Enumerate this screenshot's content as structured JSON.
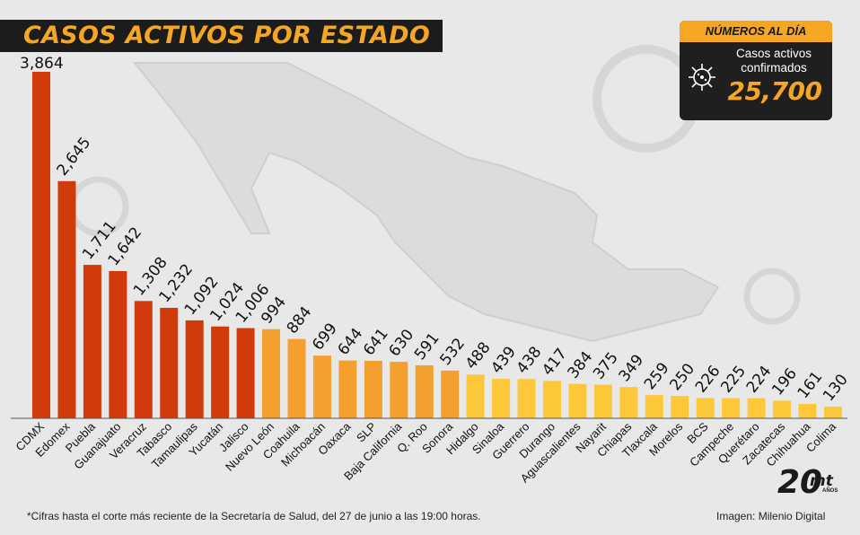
{
  "header": {
    "title": "CASOS ACTIVOS POR ESTADO"
  },
  "summary": {
    "heading": "NÚMEROS AL DÍA",
    "label": "Casos activos confirmados",
    "value": "25,700",
    "icon": "virus-icon"
  },
  "colors": {
    "high": "#d13a0b",
    "medium": "#f5a02e",
    "low": "#fcc83a",
    "accent": "#f5a623",
    "title_bg": "#1c1c1c"
  },
  "chart_data": {
    "type": "bar",
    "title": "CASOS ACTIVOS POR ESTADO",
    "xlabel": "",
    "ylabel": "",
    "categories": [
      "CDMX",
      "Edomex",
      "Puebla",
      "Guanajuato",
      "Veracruz",
      "Tabasco",
      "Tamaulipas",
      "Yucatán",
      "Jalisco",
      "Nuevo León",
      "Coahuila",
      "Michoacán",
      "Oaxaca",
      "SLP",
      "Baja California",
      "Q. Roo",
      "Sonora",
      "Hidalgo",
      "Sinaloa",
      "Guerrero",
      "Durango",
      "Aguascalientes",
      "Nayarit",
      "Chiapas",
      "Tlaxcala",
      "Morelos",
      "BCS",
      "Campeche",
      "Querétaro",
      "Zacatecas",
      "Chihuahua",
      "Colima"
    ],
    "values": [
      3864,
      2645,
      1711,
      1642,
      1308,
      1232,
      1092,
      1024,
      1006,
      994,
      884,
      699,
      644,
      641,
      630,
      591,
      532,
      488,
      439,
      438,
      417,
      384,
      375,
      349,
      259,
      250,
      226,
      225,
      224,
      196,
      161,
      130
    ],
    "value_labels": [
      "3,864",
      "2,645",
      "1,711",
      "1,642",
      "1,308",
      "1,232",
      "1,092",
      "1,024",
      "1,006",
      "994",
      "884",
      "699",
      "644",
      "641",
      "630",
      "591",
      "532",
      "488",
      "439",
      "438",
      "417",
      "384",
      "375",
      "349",
      "259",
      "250",
      "226",
      "225",
      "224",
      "196",
      "161",
      "130"
    ],
    "color_groups": [
      "high",
      "high",
      "high",
      "high",
      "high",
      "high",
      "high",
      "high",
      "high",
      "medium",
      "medium",
      "medium",
      "medium",
      "medium",
      "medium",
      "medium",
      "medium",
      "low",
      "low",
      "low",
      "low",
      "low",
      "low",
      "low",
      "low",
      "low",
      "low",
      "low",
      "low",
      "low",
      "low",
      "low"
    ],
    "ylim": [
      0,
      3864
    ],
    "grid": false,
    "legend": "none"
  },
  "footer": {
    "note": "*Cifras hasta el corte más reciente de la Secretaría de Salud, del 27 de junio a las 19:00 horas.",
    "credit": "Imagen: Milenio Digital",
    "logo_number": "20",
    "logo_brand": "mt",
    "logo_sub": "AÑOS"
  }
}
